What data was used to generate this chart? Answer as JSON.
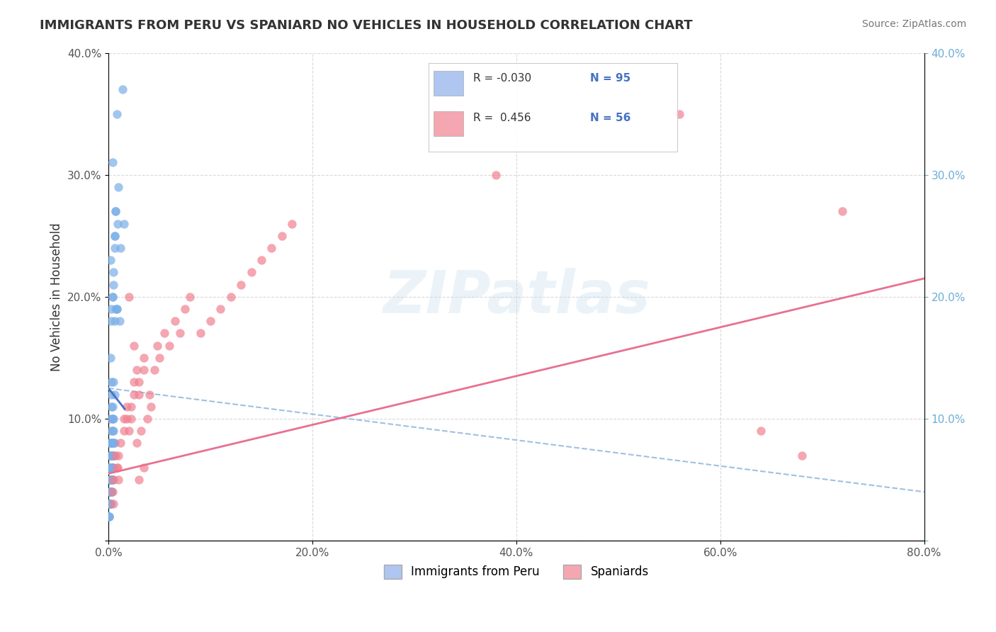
{
  "title": "IMMIGRANTS FROM PERU VS SPANIARD NO VEHICLES IN HOUSEHOLD CORRELATION CHART",
  "source": "Source: ZipAtlas.com",
  "ylabel": "No Vehicles in Household",
  "xlabel": "",
  "xlim": [
    0.0,
    0.8
  ],
  "ylim": [
    0.0,
    0.4
  ],
  "xticks": [
    0.0,
    0.2,
    0.4,
    0.6,
    0.8
  ],
  "xticklabels": [
    "0.0%",
    "20.0%",
    "40.0%",
    "60.0%",
    "80.0%"
  ],
  "yticks": [
    0.0,
    0.1,
    0.2,
    0.3,
    0.4
  ],
  "yticklabels": [
    "",
    "10.0%",
    "20.0%",
    "30.0%",
    "40.0%"
  ],
  "legend_entries": [
    {
      "label": "Immigrants from Peru",
      "color": "#aec6f0",
      "R": "-0.030",
      "N": "95"
    },
    {
      "label": "Spaniards",
      "color": "#f4a7b0",
      "R": "0.456",
      "N": "56"
    }
  ],
  "peru_color": "#7aaee8",
  "spaniard_color": "#f08090",
  "peru_line_color": "#4472c4",
  "spaniard_line_color": "#e87090",
  "dashed_line_color": "#a0c0e0",
  "peru_R": -0.03,
  "peru_N": 95,
  "spaniard_R": 0.456,
  "spaniard_N": 56,
  "watermark": "ZIPatlas",
  "background_color": "#ffffff",
  "grid_color": "#d0d0d0",
  "peru_scatter": {
    "x": [
      0.003,
      0.007,
      0.004,
      0.006,
      0.008,
      0.005,
      0.004,
      0.003,
      0.002,
      0.006,
      0.005,
      0.008,
      0.003,
      0.004,
      0.007,
      0.006,
      0.002,
      0.003,
      0.004,
      0.005,
      0.002,
      0.003,
      0.001,
      0.004,
      0.003,
      0.006,
      0.005,
      0.004,
      0.003,
      0.002,
      0.001,
      0.003,
      0.004,
      0.005,
      0.002,
      0.001,
      0.003,
      0.004,
      0.003,
      0.002,
      0.001,
      0.002,
      0.003,
      0.005,
      0.004,
      0.003,
      0.002,
      0.001,
      0.004,
      0.003,
      0.005,
      0.003,
      0.004,
      0.002,
      0.003,
      0.001,
      0.002,
      0.004,
      0.003,
      0.005,
      0.002,
      0.004,
      0.003,
      0.006,
      0.003,
      0.002,
      0.004,
      0.005,
      0.003,
      0.002,
      0.001,
      0.003,
      0.002,
      0.004,
      0.003,
      0.002,
      0.001,
      0.003,
      0.002,
      0.003,
      0.004,
      0.002,
      0.003,
      0.001,
      0.002,
      0.003,
      0.014,
      0.01,
      0.007,
      0.009,
      0.012,
      0.008,
      0.011,
      0.006,
      0.015
    ],
    "y": [
      0.13,
      0.27,
      0.31,
      0.25,
      0.35,
      0.22,
      0.2,
      0.19,
      0.23,
      0.24,
      0.21,
      0.19,
      0.18,
      0.2,
      0.19,
      0.18,
      0.15,
      0.12,
      0.11,
      0.13,
      0.1,
      0.09,
      0.08,
      0.1,
      0.11,
      0.12,
      0.1,
      0.09,
      0.08,
      0.07,
      0.06,
      0.08,
      0.1,
      0.09,
      0.07,
      0.06,
      0.08,
      0.07,
      0.06,
      0.05,
      0.04,
      0.05,
      0.07,
      0.08,
      0.06,
      0.05,
      0.04,
      0.03,
      0.07,
      0.06,
      0.08,
      0.05,
      0.06,
      0.04,
      0.05,
      0.03,
      0.04,
      0.06,
      0.05,
      0.07,
      0.04,
      0.06,
      0.05,
      0.08,
      0.05,
      0.04,
      0.06,
      0.07,
      0.05,
      0.04,
      0.02,
      0.04,
      0.03,
      0.05,
      0.04,
      0.03,
      0.02,
      0.04,
      0.03,
      0.04,
      0.05,
      0.03,
      0.04,
      0.02,
      0.03,
      0.04,
      0.37,
      0.29,
      0.27,
      0.26,
      0.24,
      0.19,
      0.18,
      0.25,
      0.26
    ]
  },
  "spaniard_scatter": {
    "x": [
      0.005,
      0.007,
      0.009,
      0.012,
      0.015,
      0.02,
      0.018,
      0.022,
      0.025,
      0.03,
      0.035,
      0.028,
      0.032,
      0.038,
      0.04,
      0.045,
      0.042,
      0.048,
      0.05,
      0.055,
      0.06,
      0.065,
      0.07,
      0.075,
      0.08,
      0.09,
      0.1,
      0.11,
      0.12,
      0.13,
      0.14,
      0.15,
      0.16,
      0.17,
      0.18,
      0.004,
      0.008,
      0.01,
      0.015,
      0.018,
      0.022,
      0.025,
      0.03,
      0.028,
      0.035,
      0.64,
      0.68,
      0.72,
      0.005,
      0.01,
      0.38,
      0.02,
      0.025,
      0.03,
      0.035,
      0.56
    ],
    "y": [
      0.05,
      0.07,
      0.06,
      0.08,
      0.1,
      0.09,
      0.11,
      0.1,
      0.13,
      0.12,
      0.14,
      0.08,
      0.09,
      0.1,
      0.12,
      0.14,
      0.11,
      0.16,
      0.15,
      0.17,
      0.16,
      0.18,
      0.17,
      0.19,
      0.2,
      0.17,
      0.18,
      0.19,
      0.2,
      0.21,
      0.22,
      0.23,
      0.24,
      0.25,
      0.26,
      0.04,
      0.06,
      0.07,
      0.09,
      0.1,
      0.11,
      0.12,
      0.13,
      0.14,
      0.15,
      0.09,
      0.07,
      0.27,
      0.03,
      0.05,
      0.3,
      0.2,
      0.16,
      0.05,
      0.06,
      0.35
    ]
  }
}
